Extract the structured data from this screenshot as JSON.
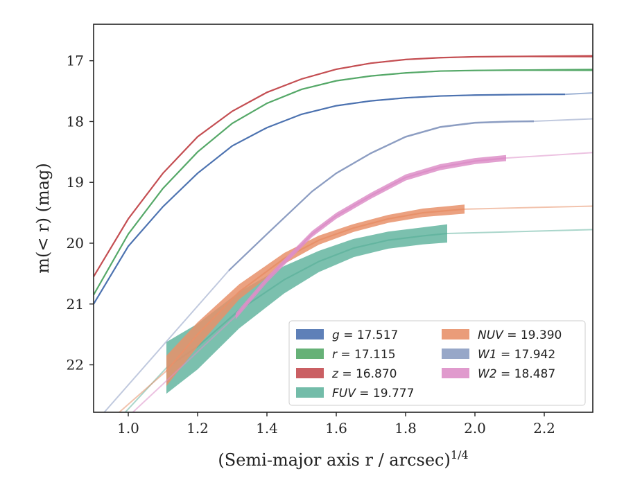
{
  "chart_data": {
    "type": "line",
    "xlabel": "(Semi-major axis r / arcsec)",
    "xlabel_sup": "1/4",
    "ylabel": "m(< r) (mag)",
    "xlim": [
      0.9,
      2.34
    ],
    "ylim": [
      22.78,
      16.4
    ],
    "y_inverted": true,
    "xticks": [
      1.0,
      1.2,
      1.4,
      1.6,
      1.8,
      2.0,
      2.2
    ],
    "xtick_labels": [
      "1.0",
      "1.2",
      "1.4",
      "1.6",
      "1.8",
      "2.0",
      "2.2"
    ],
    "yticks": [
      17,
      18,
      19,
      20,
      21,
      22
    ],
    "ytick_labels": [
      "17",
      "18",
      "19",
      "20",
      "21",
      "22"
    ],
    "grid": false,
    "legend_position": "lower-right",
    "series": [
      {
        "name": "g = 17.517",
        "color": "#4c72b0",
        "x": [
          0.9,
          1.0,
          1.1,
          1.2,
          1.3,
          1.4,
          1.5,
          1.6,
          1.7,
          1.8,
          1.9,
          2.0,
          2.1,
          2.2,
          2.26
        ],
        "y": [
          21.0,
          20.05,
          19.4,
          18.85,
          18.4,
          18.1,
          17.88,
          17.74,
          17.66,
          17.61,
          17.58,
          17.565,
          17.558,
          17.553,
          17.552
        ],
        "band_width": [
          0.02,
          0.02,
          0.02,
          0.02,
          0.02,
          0.02,
          0.02,
          0.02,
          0.02,
          0.02,
          0.02,
          0.02,
          0.02,
          0.02,
          0.02
        ],
        "extrapolation": {
          "x": [
            2.26,
            2.34
          ],
          "y": [
            17.552,
            17.53
          ]
        }
      },
      {
        "name": "r = 17.115",
        "color": "#55a868",
        "x": [
          0.9,
          1.0,
          1.1,
          1.2,
          1.3,
          1.4,
          1.5,
          1.6,
          1.7,
          1.8,
          1.9,
          2.0,
          2.1,
          2.2,
          2.34
        ],
        "y": [
          20.85,
          19.85,
          19.1,
          18.5,
          18.03,
          17.7,
          17.47,
          17.33,
          17.25,
          17.2,
          17.17,
          17.16,
          17.155,
          17.153,
          17.15
        ],
        "band_width": [
          0.02,
          0.02,
          0.02,
          0.02,
          0.02,
          0.02,
          0.02,
          0.02,
          0.02,
          0.02,
          0.02,
          0.02,
          0.02,
          0.03,
          0.04
        ]
      },
      {
        "name": "z = 16.870",
        "color": "#c44e52",
        "x": [
          0.9,
          1.0,
          1.1,
          1.2,
          1.3,
          1.4,
          1.5,
          1.6,
          1.7,
          1.8,
          1.9,
          2.0,
          2.1,
          2.2,
          2.34
        ],
        "y": [
          20.55,
          19.6,
          18.85,
          18.25,
          17.83,
          17.52,
          17.3,
          17.14,
          17.04,
          16.98,
          16.95,
          16.935,
          16.93,
          16.928,
          16.925
        ],
        "band_width": [
          0.02,
          0.02,
          0.02,
          0.02,
          0.02,
          0.02,
          0.02,
          0.02,
          0.02,
          0.02,
          0.02,
          0.02,
          0.02,
          0.03,
          0.04
        ]
      },
      {
        "name": "FUV = 19.777",
        "color": "#64b5a0",
        "x": [
          1.11,
          1.2,
          1.32,
          1.45,
          1.55,
          1.65,
          1.75,
          1.85,
          1.92
        ],
        "y": [
          22.05,
          21.7,
          21.1,
          20.6,
          20.3,
          20.08,
          19.95,
          19.88,
          19.84
        ],
        "band_width": [
          0.85,
          0.75,
          0.6,
          0.45,
          0.35,
          0.3,
          0.28,
          0.28,
          0.3
        ],
        "extrapolation": {
          "x": [
            1.92,
            2.34
          ],
          "y": [
            19.84,
            19.777
          ]
        },
        "extrapolation_in": {
          "x": [
            0.98,
            1.11
          ],
          "y": [
            22.85,
            22.05
          ]
        }
      },
      {
        "name": "NUV = 19.390",
        "color": "#e8916a",
        "x": [
          1.11,
          1.2,
          1.32,
          1.45,
          1.55,
          1.65,
          1.75,
          1.85,
          1.97
        ],
        "y": [
          22.1,
          21.5,
          20.8,
          20.25,
          19.95,
          19.75,
          19.6,
          19.5,
          19.44
        ],
        "band_width": [
          0.5,
          0.4,
          0.25,
          0.18,
          0.15,
          0.13,
          0.13,
          0.14,
          0.15
        ],
        "extrapolation": {
          "x": [
            1.97,
            2.34
          ],
          "y": [
            19.44,
            19.39
          ]
        },
        "extrapolation_in": {
          "x": [
            0.96,
            1.11
          ],
          "y": [
            22.85,
            22.1
          ]
        }
      },
      {
        "name": "W1 = 17.942",
        "color": "#8c9dc2",
        "x": [
          1.29,
          1.4,
          1.53,
          1.6,
          1.7,
          1.8,
          1.9,
          2.0,
          2.1,
          2.17
        ],
        "y": [
          20.45,
          19.85,
          19.15,
          18.85,
          18.52,
          18.25,
          18.09,
          18.02,
          18.0,
          17.995
        ],
        "band_width": [
          0.03,
          0.03,
          0.03,
          0.03,
          0.03,
          0.03,
          0.03,
          0.03,
          0.03,
          0.03
        ],
        "extrapolation": {
          "x": [
            2.17,
            2.34
          ],
          "y": [
            17.995,
            17.955
          ]
        },
        "extrapolation_in": {
          "x": [
            0.92,
            1.29
          ],
          "y": [
            22.85,
            20.45
          ]
        }
      },
      {
        "name": "W2 = 18.487",
        "color": "#dd8fc8",
        "x": [
          1.31,
          1.4,
          1.53,
          1.6,
          1.7,
          1.8,
          1.9,
          2.0,
          2.09
        ],
        "y": [
          21.2,
          20.6,
          19.85,
          19.55,
          19.22,
          18.92,
          18.75,
          18.65,
          18.6
        ],
        "band_width": [
          0.1,
          0.1,
          0.1,
          0.1,
          0.1,
          0.1,
          0.1,
          0.1,
          0.1
        ],
        "extrapolation": {
          "x": [
            2.09,
            2.34
          ],
          "y": [
            18.6,
            18.51
          ]
        },
        "extrapolation_in": {
          "x": [
            1.0,
            1.31
          ],
          "y": [
            22.85,
            21.2
          ]
        }
      }
    ]
  }
}
